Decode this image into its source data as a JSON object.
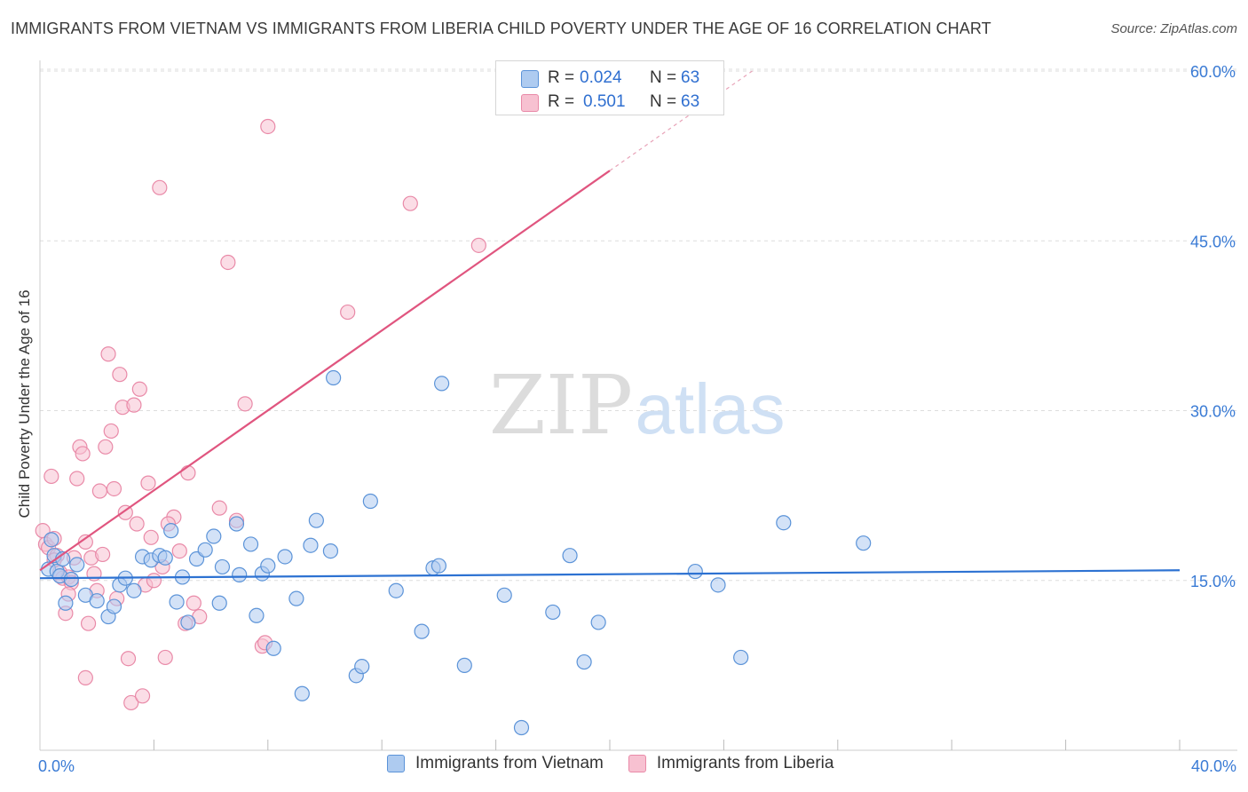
{
  "title": "IMMIGRANTS FROM VIETNAM VS IMMIGRANTS FROM LIBERIA CHILD POVERTY UNDER THE AGE OF 16 CORRELATION CHART",
  "source": "Source: ZipAtlas.com",
  "watermark": {
    "zip": "ZIP",
    "atlas": "atlas"
  },
  "stats": {
    "r_label": "R =",
    "n_label": "N =",
    "rows": [
      {
        "r": "0.024",
        "n": "63"
      },
      {
        "r": "0.501",
        "n": "63"
      }
    ]
  },
  "legend": {
    "vietnam": "Immigrants from Vietnam",
    "liberia": "Immigrants from Liberia"
  },
  "colors": {
    "vietnam_fill": "#aecbf0",
    "vietnam_stroke": "#5b93d8",
    "vietnam_line": "#2d72d2",
    "liberia_fill": "#f7c1d1",
    "liberia_stroke": "#e98aa8",
    "liberia_line": "#e0557f",
    "tick_label": "#3a7bd5"
  },
  "chart_data": {
    "type": "scatter",
    "title": "IMMIGRANTS FROM VIETNAM VS IMMIGRANTS FROM LIBERIA CHILD POVERTY UNDER THE AGE OF 16 CORRELATION CHART",
    "xlabel": "",
    "ylabel": "Child Poverty Under the Age of 16",
    "xlim": [
      0,
      42
    ],
    "ylim": [
      0,
      60
    ],
    "x_tick_labels": {
      "min": "0.0%",
      "max": "40.0%"
    },
    "y_ticks": [
      {
        "value": 15,
        "label": "15.0%"
      },
      {
        "value": 30,
        "label": "30.0%"
      },
      {
        "value": 45,
        "label": "45.0%"
      },
      {
        "value": 60,
        "label": "60.0%"
      }
    ],
    "series": [
      {
        "name": "Immigrants from Vietnam",
        "R": 0.024,
        "N": 63,
        "trend": {
          "x": [
            0,
            40
          ],
          "y": [
            15.2,
            15.9
          ]
        },
        "points": [
          [
            0.3,
            16.0
          ],
          [
            0.4,
            18.6
          ],
          [
            0.5,
            17.2
          ],
          [
            0.6,
            15.8
          ],
          [
            0.7,
            15.4
          ],
          [
            0.8,
            16.9
          ],
          [
            0.9,
            13.0
          ],
          [
            1.1,
            15.1
          ],
          [
            1.3,
            16.4
          ],
          [
            1.6,
            13.7
          ],
          [
            2.0,
            13.2
          ],
          [
            2.4,
            11.8
          ],
          [
            2.6,
            12.7
          ],
          [
            2.8,
            14.6
          ],
          [
            3.0,
            15.2
          ],
          [
            3.3,
            14.1
          ],
          [
            3.6,
            17.1
          ],
          [
            3.9,
            16.8
          ],
          [
            4.2,
            17.2
          ],
          [
            4.4,
            17.0
          ],
          [
            4.6,
            19.4
          ],
          [
            4.8,
            13.1
          ],
          [
            5.0,
            15.3
          ],
          [
            5.2,
            11.3
          ],
          [
            5.5,
            16.9
          ],
          [
            5.8,
            17.7
          ],
          [
            6.1,
            18.9
          ],
          [
            6.3,
            13.0
          ],
          [
            6.4,
            16.2
          ],
          [
            6.9,
            20.0
          ],
          [
            7.0,
            15.5
          ],
          [
            7.4,
            18.2
          ],
          [
            7.6,
            11.9
          ],
          [
            7.8,
            15.6
          ],
          [
            8.0,
            16.3
          ],
          [
            8.2,
            9.0
          ],
          [
            8.6,
            17.1
          ],
          [
            9.0,
            13.4
          ],
          [
            9.2,
            5.0
          ],
          [
            9.5,
            18.1
          ],
          [
            9.7,
            20.3
          ],
          [
            10.2,
            17.6
          ],
          [
            10.3,
            32.9
          ],
          [
            11.1,
            6.6
          ],
          [
            11.3,
            7.4
          ],
          [
            11.6,
            22.0
          ],
          [
            12.5,
            14.1
          ],
          [
            13.4,
            10.5
          ],
          [
            13.8,
            16.1
          ],
          [
            14.0,
            16.3
          ],
          [
            14.1,
            32.4
          ],
          [
            14.9,
            7.5
          ],
          [
            16.3,
            13.7
          ],
          [
            16.9,
            2.0
          ],
          [
            18.0,
            12.2
          ],
          [
            18.6,
            17.2
          ],
          [
            19.1,
            7.8
          ],
          [
            19.6,
            11.3
          ],
          [
            23.0,
            15.8
          ],
          [
            23.8,
            14.6
          ],
          [
            24.6,
            8.2
          ],
          [
            26.1,
            20.1
          ],
          [
            28.9,
            18.3
          ]
        ]
      },
      {
        "name": "Immigrants from Liberia",
        "R": 0.501,
        "N": 63,
        "trend": {
          "x": [
            0,
            20
          ],
          "y": [
            15.9,
            51.2
          ]
        },
        "trend_dashed": {
          "x": [
            20,
            25
          ],
          "y": [
            51.2,
            60.0
          ]
        },
        "points": [
          [
            0.1,
            19.4
          ],
          [
            0.2,
            18.2
          ],
          [
            0.3,
            17.9
          ],
          [
            0.4,
            24.2
          ],
          [
            0.5,
            18.7
          ],
          [
            0.6,
            17.2
          ],
          [
            0.7,
            15.7
          ],
          [
            0.8,
            15.2
          ],
          [
            0.9,
            12.1
          ],
          [
            1.0,
            15.3
          ],
          [
            1.1,
            14.8
          ],
          [
            1.2,
            17.0
          ],
          [
            1.3,
            24.0
          ],
          [
            1.4,
            26.8
          ],
          [
            1.5,
            26.2
          ],
          [
            1.6,
            18.4
          ],
          [
            1.7,
            11.2
          ],
          [
            1.8,
            17.0
          ],
          [
            1.9,
            15.6
          ],
          [
            2.0,
            14.1
          ],
          [
            2.1,
            22.9
          ],
          [
            2.2,
            17.3
          ],
          [
            2.3,
            26.8
          ],
          [
            2.4,
            35.0
          ],
          [
            2.5,
            28.2
          ],
          [
            2.6,
            23.1
          ],
          [
            2.8,
            33.2
          ],
          [
            2.9,
            30.3
          ],
          [
            3.0,
            21.0
          ],
          [
            3.1,
            8.1
          ],
          [
            3.2,
            4.2
          ],
          [
            3.3,
            30.5
          ],
          [
            3.4,
            20.0
          ],
          [
            3.5,
            31.9
          ],
          [
            3.6,
            4.8
          ],
          [
            3.7,
            14.6
          ],
          [
            3.8,
            23.6
          ],
          [
            3.9,
            18.8
          ],
          [
            4.0,
            15.0
          ],
          [
            4.2,
            49.7
          ],
          [
            4.3,
            16.2
          ],
          [
            4.4,
            8.2
          ],
          [
            4.7,
            20.6
          ],
          [
            4.9,
            17.6
          ],
          [
            5.1,
            11.2
          ],
          [
            5.2,
            24.5
          ],
          [
            5.4,
            13.0
          ],
          [
            5.6,
            11.8
          ],
          [
            6.3,
            21.4
          ],
          [
            6.6,
            43.1
          ],
          [
            6.9,
            20.3
          ],
          [
            7.2,
            30.6
          ],
          [
            7.8,
            9.2
          ],
          [
            8.0,
            55.1
          ],
          [
            10.8,
            38.7
          ],
          [
            13.0,
            48.3
          ],
          [
            15.4,
            44.6
          ],
          [
            0.5,
            16.8
          ],
          [
            1.0,
            13.8
          ],
          [
            1.6,
            6.4
          ],
          [
            2.7,
            13.4
          ],
          [
            4.5,
            20.0
          ],
          [
            7.9,
            9.5
          ]
        ]
      }
    ]
  }
}
